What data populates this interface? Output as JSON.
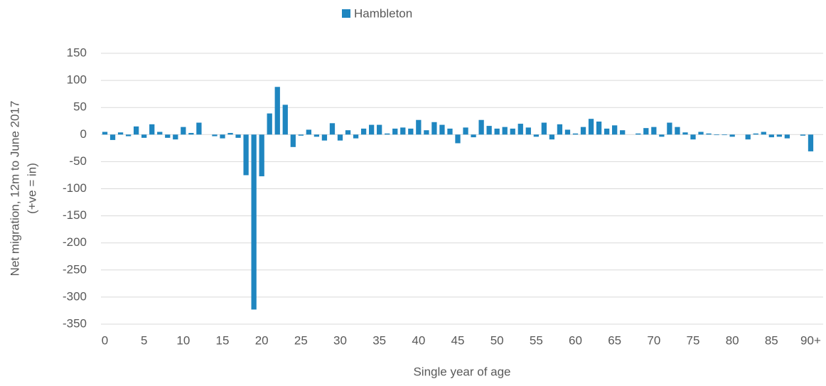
{
  "chart_data": {
    "type": "bar",
    "legend": "Hambleton",
    "x_label": "Single year of age",
    "y_label": [
      "Net migration, 12m to June 2017",
      "(+ve = in)"
    ],
    "series": [
      {
        "name": "Hambleton",
        "color": "#1f86c0",
        "values": [
          5,
          -10,
          4,
          -3,
          15,
          -6,
          19,
          5,
          -6,
          -9,
          14,
          3,
          22,
          0,
          -3,
          -7,
          3,
          -6,
          -75,
          -323,
          -77,
          39,
          88,
          55,
          -23,
          -2,
          9,
          -4,
          -11,
          21,
          -11,
          8,
          -7,
          11,
          18,
          18,
          2,
          11,
          13,
          11,
          27,
          8,
          23,
          18,
          11,
          -16,
          13,
          -5,
          27,
          16,
          11,
          14,
          11,
          20,
          13,
          -4,
          22,
          -9,
          19,
          9,
          2,
          14,
          29,
          24,
          11,
          17,
          8,
          0,
          2,
          12,
          14,
          -4,
          22,
          14,
          4,
          -9,
          5,
          2,
          -1,
          -1,
          -4,
          0,
          -9,
          2,
          5,
          -5,
          -4,
          -7,
          0,
          -2,
          -31
        ]
      }
    ],
    "categories": [
      "0",
      null,
      null,
      null,
      null,
      "5",
      null,
      null,
      null,
      null,
      "10",
      null,
      null,
      null,
      null,
      "15",
      null,
      null,
      null,
      null,
      "20",
      null,
      null,
      null,
      null,
      "25",
      null,
      null,
      null,
      null,
      "30",
      null,
      null,
      null,
      null,
      "35",
      null,
      null,
      null,
      null,
      "40",
      null,
      null,
      null,
      null,
      "45",
      null,
      null,
      null,
      null,
      "50",
      null,
      null,
      null,
      null,
      "55",
      null,
      null,
      null,
      null,
      "60",
      null,
      null,
      null,
      null,
      "65",
      null,
      null,
      null,
      null,
      "70",
      null,
      null,
      null,
      null,
      "75",
      null,
      null,
      null,
      null,
      "80",
      null,
      null,
      null,
      null,
      "85",
      null,
      null,
      null,
      null,
      "90+"
    ],
    "ylim": [
      -350,
      150
    ],
    "yticks": [
      -350,
      -300,
      -250,
      -200,
      -150,
      -100,
      -50,
      0,
      50,
      100,
      150
    ],
    "grid": true,
    "legend_position": "top"
  }
}
